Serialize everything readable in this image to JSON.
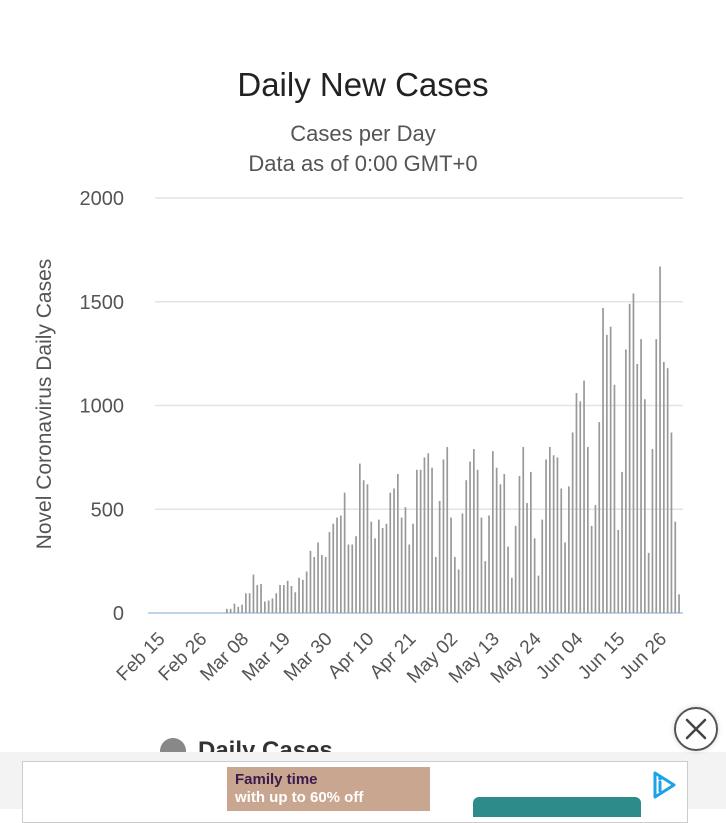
{
  "chart_data": {
    "type": "bar",
    "title": "Daily New Cases",
    "subtitle_lines": [
      "Cases per Day",
      "Data as of 0:00 GMT+0"
    ],
    "ylabel": "Novel Coronavirus Daily Cases",
    "ylim": [
      0,
      2000
    ],
    "yticks": [
      0,
      500,
      1000,
      1500,
      2000
    ],
    "xtick_labels": [
      "Feb 15",
      "Feb 26",
      "Mar 08",
      "Mar 19",
      "Mar 30",
      "Apr 10",
      "Apr 21",
      "May 02",
      "May 13",
      "May 24",
      "Jun 04",
      "Jun 15",
      "Jun 26"
    ],
    "start_date": "Feb 15",
    "legend": "Daily Cases",
    "legend_position": "bottom",
    "grid": true,
    "bar_color": "#999999",
    "values": [
      0,
      0,
      0,
      0,
      0,
      0,
      0,
      0,
      0,
      0,
      0,
      0,
      0,
      0,
      0,
      0,
      0,
      0,
      0,
      0,
      20,
      20,
      45,
      30,
      40,
      95,
      95,
      185,
      135,
      140,
      55,
      60,
      70,
      95,
      135,
      135,
      155,
      130,
      100,
      170,
      160,
      200,
      300,
      270,
      340,
      280,
      270,
      390,
      430,
      460,
      470,
      580,
      330,
      330,
      370,
      720,
      640,
      620,
      440,
      360,
      450,
      410,
      430,
      580,
      600,
      670,
      460,
      510,
      330,
      430,
      690,
      690,
      750,
      770,
      700,
      270,
      540,
      740,
      800,
      460,
      270,
      210,
      480,
      640,
      730,
      790,
      690,
      460,
      250,
      470,
      780,
      700,
      620,
      670,
      320,
      170,
      420,
      660,
      800,
      530,
      680,
      360,
      180,
      450,
      740,
      800,
      760,
      750,
      600,
      340,
      610,
      870,
      1060,
      1020,
      1120,
      800,
      420,
      520,
      920,
      1470,
      1340,
      1380,
      1100,
      400,
      680,
      1270,
      1490,
      1540,
      1200,
      1320,
      1030,
      290,
      790,
      1320,
      1670,
      1210,
      1180,
      870,
      440,
      90
    ]
  },
  "ads": {
    "banner_line1": "Family time",
    "banner_line2": "with up to 60% off",
    "accent_color": "#2d8b8a"
  },
  "icons": {
    "close": "close-icon",
    "ad_choices": "ad-choices-icon"
  }
}
